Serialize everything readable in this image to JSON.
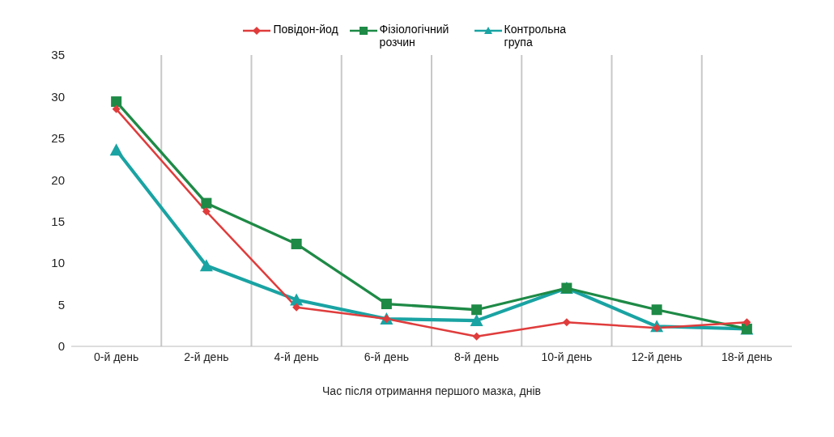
{
  "chart_data": {
    "type": "line",
    "xlabel": "Час після отримання першого мазка, днів",
    "categories": [
      "0-й день",
      "2-й день",
      "4-й день",
      "6-й день",
      "8-й день",
      "10-й день",
      "12-й день",
      "18-й день"
    ],
    "series": [
      {
        "name": "Повідон-йод",
        "color": "#e03c3c",
        "marker": "diamond",
        "values": [
          28.5,
          16.2,
          4.7,
          3.3,
          1.2,
          2.9,
          2.2,
          2.9
        ]
      },
      {
        "name": "Фізіологічний розчин",
        "color": "#1e8a46",
        "marker": "square",
        "values": [
          29.4,
          17.2,
          12.3,
          5.1,
          4.4,
          7.0,
          4.4,
          2.1
        ]
      },
      {
        "name": "Контрольна група",
        "color": "#1aa3a3",
        "marker": "triangle",
        "values": [
          23.6,
          9.7,
          5.6,
          3.3,
          3.1,
          7.0,
          2.4,
          2.1
        ]
      }
    ],
    "ylim": [
      0,
      35
    ],
    "yticks": [
      0,
      5,
      10,
      15,
      20,
      25,
      30,
      35
    ],
    "grid": "x",
    "legend": "top",
    "line_style": "solid"
  }
}
